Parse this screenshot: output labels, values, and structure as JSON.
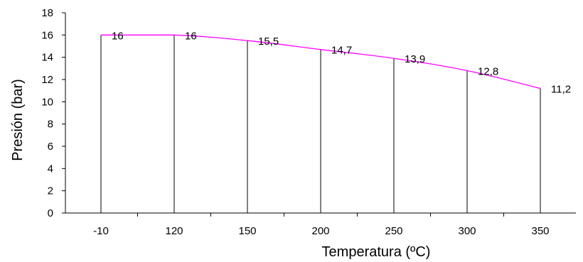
{
  "chart_data": {
    "type": "line",
    "title": "",
    "xlabel": "Temperatura (ºC)",
    "ylabel": "Presión (bar)",
    "categories": [
      "-10",
      "120",
      "150",
      "200",
      "250",
      "300",
      "350"
    ],
    "series": [
      {
        "values": [
          16,
          16,
          15.5,
          14.7,
          13.9,
          12.8,
          11.2
        ],
        "data_labels": [
          "16",
          "16",
          "15,5",
          "14,7",
          "13,9",
          "12,8",
          "11,2"
        ],
        "color": "#ff00ff"
      }
    ],
    "ylim": [
      0,
      18
    ],
    "yticks": [
      0,
      2,
      4,
      6,
      8,
      10,
      12,
      14,
      16,
      18
    ],
    "drop_lines": true,
    "drop_line_color": "#000000",
    "grid": false,
    "legend": "none"
  }
}
